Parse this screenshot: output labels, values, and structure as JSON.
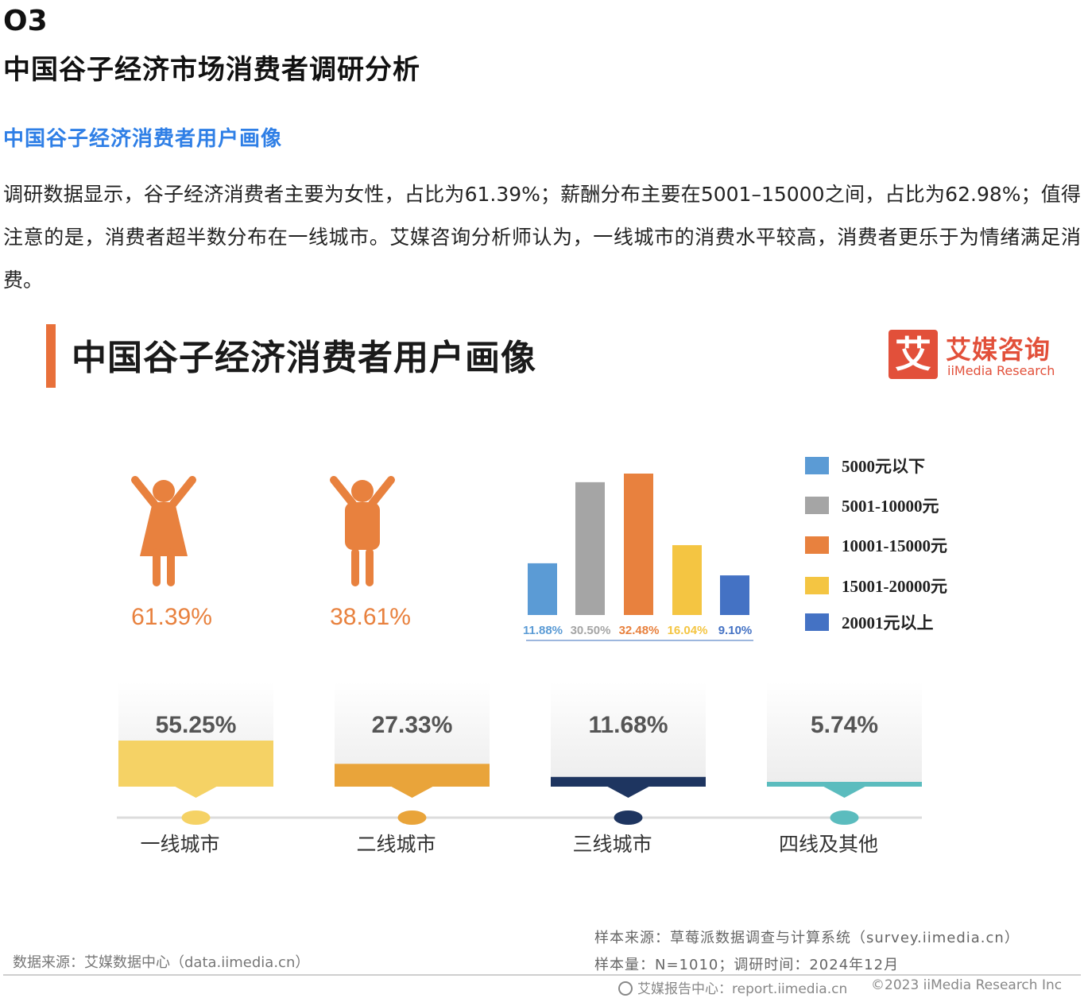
{
  "section": {
    "number": "O3",
    "title": "中国谷子经济市场消费者调研分析",
    "subtitle": "中国谷子经济消费者用户画像",
    "paragraph": "调研数据显示，谷子经济消费者主要为女性，占比为61.39%；薪酬分布主要在5001–15000之间，占比为62.98%；值得注意的是，消费者超半数分布在一线城市。艾媒咨询分析师认为，一线城市的消费水平较高，消费者更乐于为情绪满足消费。"
  },
  "card": {
    "title": "中国谷子经济消费者用户画像",
    "logo_cn": "艾媒咨询",
    "logo_en": "iiMedia Research",
    "logo_mark": "艾"
  },
  "colors": {
    "accent": "#e8703a",
    "logo": "#e2503a",
    "blue_text": "#2f7fe6"
  },
  "chart_data": [
    {
      "type": "pictogram",
      "values": [
        61.39,
        38.61
      ],
      "labels": [
        "61.39%",
        "38.61%"
      ],
      "icons": [
        "female-figure-icon",
        "male-figure-icon"
      ],
      "colors": [
        "#e8813e",
        "#e8813e"
      ]
    },
    {
      "type": "bar",
      "categories": [
        "5000元以下",
        "5001-10000元",
        "10001-15000元",
        "15001-20000元",
        "20001元以上"
      ],
      "values": [
        11.88,
        30.5,
        32.48,
        16.04,
        9.1
      ],
      "labels": [
        "11.88%",
        "30.50%",
        "32.48%",
        "16.04%",
        "9.10%"
      ],
      "colors": [
        "#5b9bd5",
        "#a5a5a5",
        "#e8813e",
        "#f4c542",
        "#4472c4"
      ],
      "legend": "right"
    },
    {
      "type": "bar",
      "categories": [
        "一线城市",
        "二线城市",
        "三线城市",
        "四线及其他"
      ],
      "values": [
        55.25,
        27.33,
        11.68,
        5.74
      ],
      "labels": [
        "55.25%",
        "27.33%",
        "11.68%",
        "5.74%"
      ],
      "colors": [
        "#f5d265",
        "#e9a43a",
        "#1e3560",
        "#5bbcbe"
      ]
    }
  ],
  "footer": {
    "data_source": "数据来源：艾媒数据中心（data.iimedia.cn）",
    "sample_source": "样本来源：草莓派数据调查与计算系统（survey.iimedia.cn）",
    "sample_size": "样本量：N=1010；调研时间：2024年12月",
    "brand": "艾媒报告中心：report.iimedia.cn",
    "copyright": "©2023  iiMedia Research  Inc"
  }
}
